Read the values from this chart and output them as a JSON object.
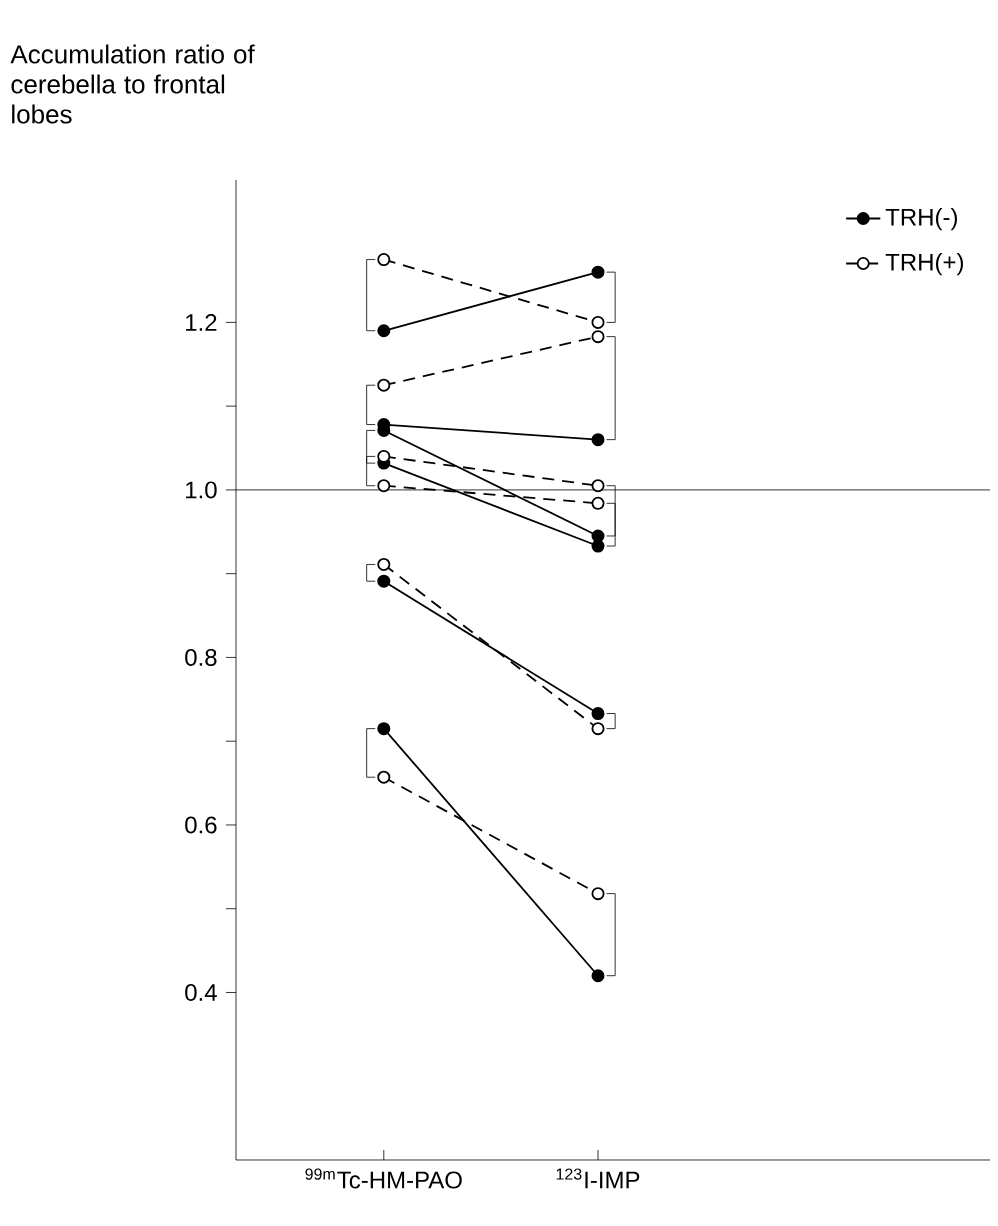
{
  "chart_data": {
    "type": "line",
    "ylabel": "Accumulation ratio of cerebella to frontal lobes",
    "categories": [
      "$^{99m}$Tc-HM-PAO",
      "$^{123}$I-IMP"
    ],
    "ylim": [
      0.2,
      1.37
    ],
    "yticks": [
      {
        "value": 0.4,
        "label": "0.4"
      },
      {
        "value": 0.6,
        "label": "0.6"
      },
      {
        "value": 0.8,
        "label": "0.8"
      },
      {
        "value": 1.0,
        "label": "1.0"
      },
      {
        "value": 1.2,
        "label": "1.2"
      }
    ],
    "marker": "circle",
    "legend": "top right",
    "grid": false,
    "ref_lines": [
      {
        "axis": "y",
        "value": 1.0
      }
    ],
    "series": [
      {
        "name": "TRH(-)",
        "color": "#000000",
        "line_style": "solid",
        "values": [
          1.19,
          1.26
        ]
      },
      {
        "color": "#000000",
        "line_style": "solid",
        "values": [
          1.078,
          1.06
        ]
      },
      {
        "color": "#000000",
        "line_style": "solid",
        "values": [
          1.071,
          0.945
        ]
      },
      {
        "color": "#000000",
        "line_style": "solid",
        "values": [
          1.032,
          0.933
        ]
      },
      {
        "color": "#000000",
        "line_style": "solid",
        "values": [
          0.891,
          0.733
        ]
      },
      {
        "color": "#000000",
        "line_style": "solid",
        "values": [
          0.715,
          0.42
        ]
      },
      {
        "name": "TRH(+)",
        "color": "#000000",
        "line_style": "dashed",
        "values": [
          1.275,
          1.2
        ]
      },
      {
        "color": "#000000",
        "line_style": "dashed",
        "values": [
          1.125,
          1.183
        ]
      },
      {
        "color": "#000000",
        "line_style": "dashed",
        "values": [
          1.005,
          0.984
        ]
      },
      {
        "color": "#000000",
        "line_style": "dashed",
        "values": [
          1.04,
          1.005
        ]
      },
      {
        "color": "#000000",
        "line_style": "dashed",
        "values": [
          0.911,
          0.715
        ]
      },
      {
        "color": "#000000",
        "line_style": "dashed",
        "values": [
          0.657,
          0.518
        ]
      }
    ]
  }
}
